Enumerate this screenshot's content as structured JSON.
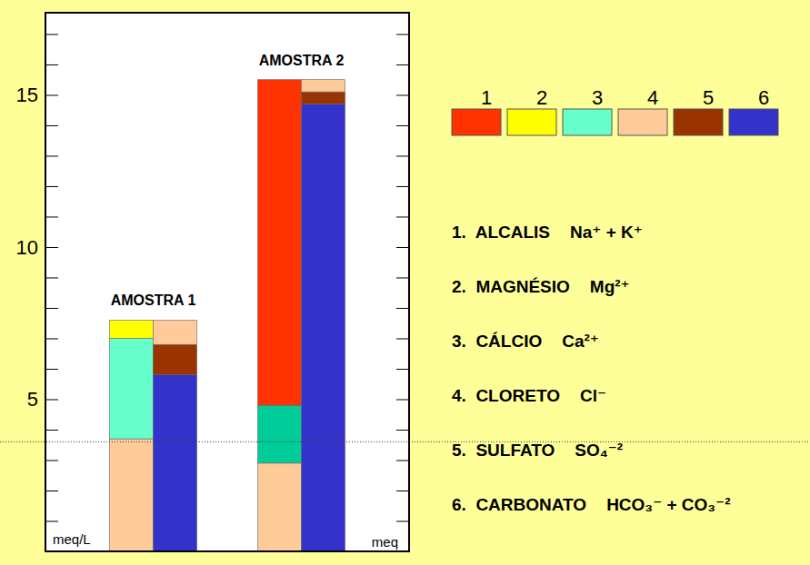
{
  "chart_data": {
    "type": "bar",
    "stacked": true,
    "ylabel": "meq/L",
    "annotations": [
      "meq"
    ],
    "ylim": [
      0,
      17.7
    ],
    "yticks": [
      5,
      10,
      15
    ],
    "minor_yticks": [
      1,
      2,
      3,
      4,
      6,
      7,
      8,
      9,
      11,
      12,
      13,
      14,
      16,
      17
    ],
    "hline": 3.6,
    "groups": [
      {
        "label": "AMOSTRA 1",
        "columns": [
          [
            {
              "item": 4,
              "value": 3.7
            },
            {
              "item": 3,
              "value": 3.3
            },
            {
              "item": 2,
              "value": 0.6
            }
          ],
          [
            {
              "item": 6,
              "value": 5.8
            },
            {
              "item": 5,
              "value": 1.0
            },
            {
              "item": 4,
              "value": 0.8
            }
          ]
        ]
      },
      {
        "label": "AMOSTRA 2",
        "columns": [
          [
            {
              "item": 4,
              "value": 2.9
            },
            {
              "item": 3,
              "value": 1.9,
              "color": "#00cc99"
            },
            {
              "item": 1,
              "value": 10.7
            }
          ],
          [
            {
              "item": 6,
              "value": 14.7
            },
            {
              "item": 5,
              "value": 0.4
            },
            {
              "item": 4,
              "value": 0.4
            }
          ]
        ]
      }
    ],
    "legend_items": [
      {
        "number": 1,
        "label": "1.  ALCALIS",
        "formula": "Na⁺ + K⁺",
        "color": "#ff3300"
      },
      {
        "number": 2,
        "label": "2.  MAGNÉSIO",
        "formula": "Mg²⁺",
        "color": "#ffff00"
      },
      {
        "number": 3,
        "label": "3.  CÁLCIO",
        "formula": "Ca²⁺",
        "color": "#66ffcc"
      },
      {
        "number": 4,
        "label": "4.  CLORETO",
        "formula": "Cl⁻",
        "color": "#ffcc99"
      },
      {
        "number": 5,
        "label": "5.  SULFATO",
        "formula": "SO₄⁻²",
        "color": "#993300"
      },
      {
        "number": 6,
        "label": "6.  CARBONATO",
        "formula": "HCO₃⁻ + CO₃⁻²",
        "color": "#3333cc"
      }
    ]
  }
}
